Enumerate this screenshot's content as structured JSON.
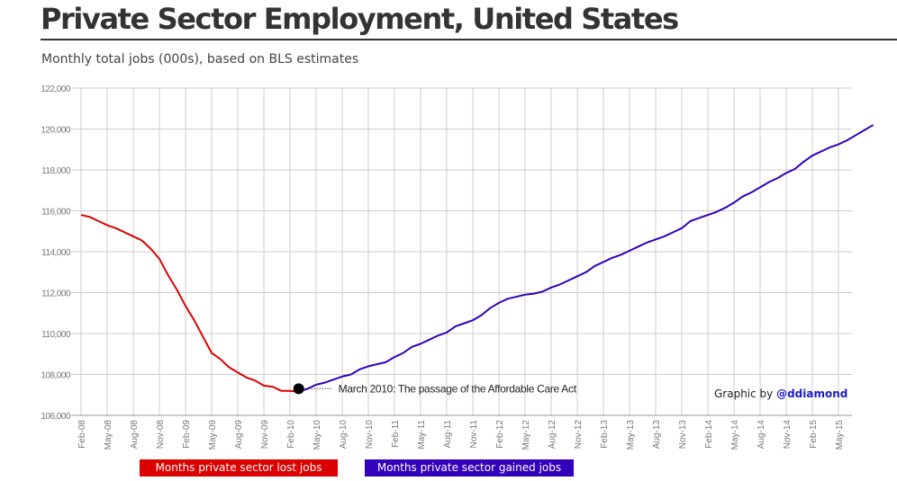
{
  "header": {
    "title": "Private Sector Employment, United States",
    "subtitle": "Monthly total jobs (000s), based on BLS estimates"
  },
  "credit": {
    "prefix": "Graphic by ",
    "handle": "@ddiamond"
  },
  "colors": {
    "lost": "#dd0000",
    "gained": "#3300bb",
    "grid": "#cccccc",
    "axis": "#999999"
  },
  "chart_data": {
    "type": "line",
    "title": "Private Sector Employment, United States",
    "subtitle": "Monthly total jobs (000s), based on BLS estimates",
    "ylim": [
      106000,
      122000
    ],
    "y_ticks": [
      106000,
      108000,
      110000,
      112000,
      114000,
      116000,
      118000,
      120000,
      122000
    ],
    "y_tick_labels": [
      "106,000",
      "108,000",
      "110,000",
      "112,000",
      "114,000",
      "116,000",
      "118,000",
      "120,000",
      "122,000"
    ],
    "x_tick_labels": [
      "Feb-08",
      "May-08",
      "Aug-08",
      "Nov-08",
      "Feb-09",
      "May-09",
      "Aug-09",
      "Nov-09",
      "Feb-10",
      "May-10",
      "Aug-10",
      "Nov-10",
      "Feb-11",
      "May-11",
      "Aug-11",
      "Nov-11",
      "Feb-12",
      "May-12",
      "Aug-12",
      "Nov-12",
      "Feb-13",
      "May-13",
      "Aug-13",
      "Nov-13",
      "Feb-14",
      "May-14",
      "Aug-14",
      "Nov-14",
      "Feb-15",
      "May-15"
    ],
    "grid": true,
    "start_month": "Feb-08",
    "series": [
      {
        "name": "Months private sector lost jobs",
        "color": "#dd0000",
        "values": [
          115800,
          115700,
          115500,
          115300,
          115150,
          114950,
          114750,
          114550,
          114150,
          113650,
          112850,
          112150,
          111350,
          110650,
          109850,
          109050,
          108750,
          108350,
          108100,
          107850,
          107700,
          107450,
          107400,
          107200,
          107200,
          107150
        ]
      },
      {
        "name": "Months private sector gained jobs",
        "color": "#3300bb",
        "values": [
          107300,
          107500,
          107600,
          107750,
          107900,
          108000,
          108250,
          108400,
          108500,
          108600,
          108850,
          109050,
          109350,
          109500,
          109700,
          109900,
          110050,
          110350,
          110500,
          110650,
          110900,
          111250,
          111500,
          111700,
          111800,
          111900,
          111950,
          112050,
          112250,
          112400,
          112600,
          112800,
          113000,
          113300,
          113500,
          113700,
          113850,
          114050,
          114250,
          114450,
          114600,
          114750,
          114950,
          115150,
          115500,
          115650,
          115800,
          115950,
          116150,
          116400,
          116700,
          116900,
          117150,
          117400,
          117600,
          117850,
          118050,
          118400,
          118700,
          118900,
          119100,
          119250,
          119450,
          119700,
          119950,
          120200
        ]
      }
    ],
    "annotation": {
      "label": "March 2010: The passage of the Affordable Care Act",
      "month": "Mar-10",
      "value": 107300
    }
  }
}
